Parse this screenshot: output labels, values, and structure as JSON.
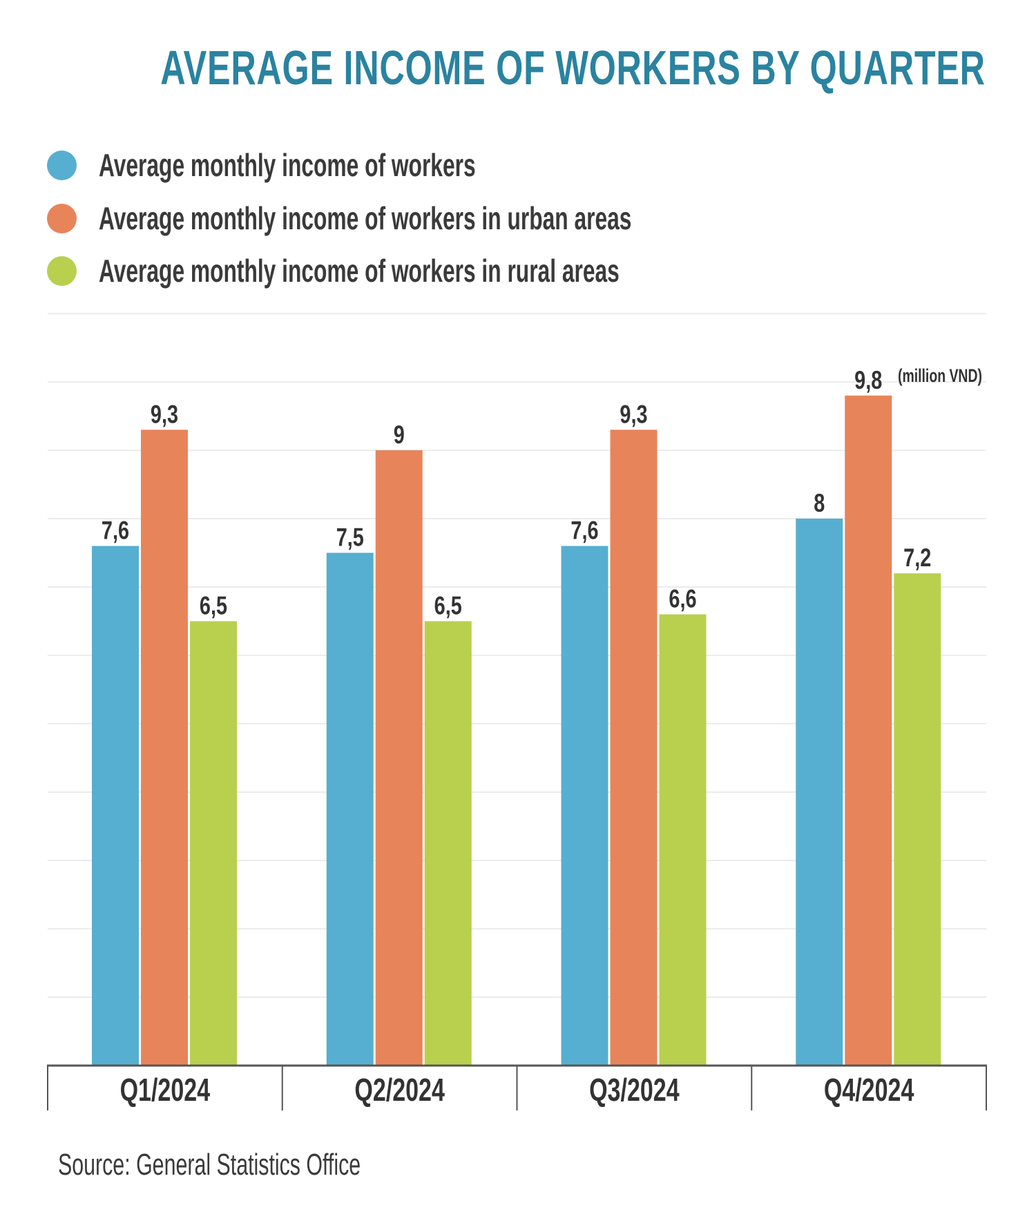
{
  "chart_data": {
    "type": "bar",
    "title": "AVERAGE INCOME OF WORKERS BY QUARTER",
    "categories": [
      "Q1/2024",
      "Q2/2024",
      "Q3/2024",
      "Q4/2024"
    ],
    "series": [
      {
        "name": "Average monthly income of workers",
        "color": "#56afd0",
        "values": [
          7.6,
          7.5,
          7.6,
          8
        ],
        "labels": [
          "7,6",
          "7,5",
          "7,6",
          "8"
        ]
      },
      {
        "name": "Average monthly income of workers in urban areas",
        "color": "#e8845a",
        "values": [
          9.3,
          9,
          9.3,
          9.8
        ],
        "labels": [
          "9,3",
          "9",
          "9,3",
          "9,8"
        ]
      },
      {
        "name": "Average monthly income of workers in rural areas",
        "color": "#b8d04e",
        "values": [
          6.5,
          6.5,
          6.6,
          7.2
        ],
        "labels": [
          "6,5",
          "6,5",
          "6,6",
          "7,2"
        ]
      }
    ],
    "unit_label": "(million VND)",
    "xlabel": "",
    "ylabel": "",
    "ylim": [
      0,
      11
    ],
    "grid": true,
    "legend": "top-left"
  },
  "source": "Source: General Statistics Office",
  "colors": {
    "title": "#2a83a0",
    "text": "#333333",
    "grid": "#ececec",
    "axis": "#555555"
  }
}
